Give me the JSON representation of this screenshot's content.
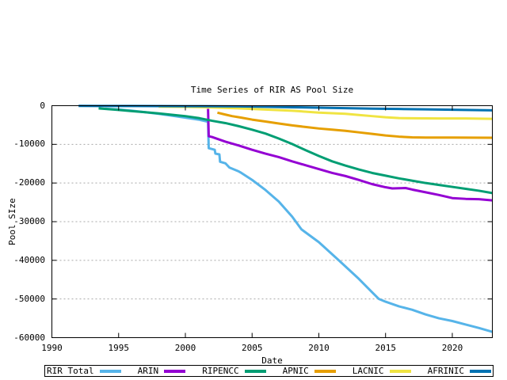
{
  "page": {
    "background": "#ffffff",
    "text_color": "#000000"
  },
  "chart_data": {
    "type": "line",
    "title": "Time Series of RIR AS Pool Size",
    "xlabel": "Date",
    "ylabel": "Pool SIze",
    "xlim": [
      1990,
      2023
    ],
    "ylim": [
      -60000,
      0
    ],
    "x_ticks": [
      1990,
      1995,
      2000,
      2005,
      2010,
      2015,
      2020
    ],
    "y_ticks": [
      0,
      -10000,
      -20000,
      -30000,
      -40000,
      -50000,
      -60000
    ],
    "grid": "horizontal-dashed",
    "grid_color": "#a8a8a8",
    "border_color": "#000000",
    "legend_position": "below-horizontal-boxed",
    "line_width": 3,
    "series": [
      {
        "name": "RIR Total",
        "color": "#56b4e9",
        "points": [
          [
            1994.0,
            -800
          ],
          [
            1995,
            -1000
          ],
          [
            1996,
            -1300
          ],
          [
            1997,
            -1700
          ],
          [
            1998,
            -2100
          ],
          [
            1999,
            -2600
          ],
          [
            2000,
            -3100
          ],
          [
            2001,
            -3600
          ],
          [
            2001.7,
            -4150
          ],
          [
            2001.75,
            -11000
          ],
          [
            2002.2,
            -11400
          ],
          [
            2002.25,
            -12400
          ],
          [
            2002.55,
            -12600
          ],
          [
            2002.6,
            -14500
          ],
          [
            2003,
            -14900
          ],
          [
            2003.3,
            -16000
          ],
          [
            2004,
            -17000
          ],
          [
            2004.2,
            -17400
          ],
          [
            2005,
            -19200
          ],
          [
            2006,
            -21800
          ],
          [
            2007,
            -24800
          ],
          [
            2008,
            -28700
          ],
          [
            2008.7,
            -32000
          ],
          [
            2010,
            -35300
          ],
          [
            2011.5,
            -40000
          ],
          [
            2013,
            -44800
          ],
          [
            2014,
            -48300
          ],
          [
            2014.5,
            -50000
          ],
          [
            2015,
            -50700
          ],
          [
            2016,
            -51900
          ],
          [
            2017,
            -52800
          ],
          [
            2018,
            -54000
          ],
          [
            2019,
            -55000
          ],
          [
            2020,
            -55700
          ],
          [
            2021,
            -56600
          ],
          [
            2022,
            -57500
          ],
          [
            2023,
            -58500
          ]
        ]
      },
      {
        "name": "ARIN",
        "color": "#9400d3",
        "points": [
          [
            2001.7,
            -800
          ],
          [
            2001.75,
            -7900
          ],
          [
            2002,
            -8100
          ],
          [
            2003,
            -9300
          ],
          [
            2004,
            -10300
          ],
          [
            2005,
            -11400
          ],
          [
            2006,
            -12400
          ],
          [
            2007,
            -13300
          ],
          [
            2008,
            -14400
          ],
          [
            2009,
            -15400
          ],
          [
            2010,
            -16400
          ],
          [
            2011,
            -17400
          ],
          [
            2012,
            -18200
          ],
          [
            2013,
            -19200
          ],
          [
            2014,
            -20300
          ],
          [
            2015,
            -21100
          ],
          [
            2015.5,
            -21400
          ],
          [
            2016.5,
            -21300
          ],
          [
            2017,
            -21700
          ],
          [
            2018,
            -22400
          ],
          [
            2019,
            -23100
          ],
          [
            2020,
            -23900
          ],
          [
            2021,
            -24100
          ],
          [
            2022,
            -24200
          ],
          [
            2023,
            -24500
          ]
        ]
      },
      {
        "name": "RIPENCC",
        "color": "#009e73",
        "points": [
          [
            1993.5,
            -700
          ],
          [
            1995,
            -1100
          ],
          [
            1996,
            -1400
          ],
          [
            1997,
            -1700
          ],
          [
            1998,
            -2000
          ],
          [
            1999,
            -2350
          ],
          [
            2000,
            -2700
          ],
          [
            2001,
            -3200
          ],
          [
            2002,
            -3900
          ],
          [
            2003,
            -4500
          ],
          [
            2004,
            -5300
          ],
          [
            2005,
            -6200
          ],
          [
            2006,
            -7200
          ],
          [
            2007,
            -8500
          ],
          [
            2008,
            -9900
          ],
          [
            2009,
            -11500
          ],
          [
            2010,
            -13000
          ],
          [
            2011,
            -14400
          ],
          [
            2012,
            -15500
          ],
          [
            2013,
            -16500
          ],
          [
            2014,
            -17400
          ],
          [
            2015,
            -18100
          ],
          [
            2016,
            -18800
          ],
          [
            2017,
            -19400
          ],
          [
            2018,
            -20000
          ],
          [
            2019,
            -20500
          ],
          [
            2020,
            -21000
          ],
          [
            2021,
            -21500
          ],
          [
            2022,
            -22000
          ],
          [
            2023,
            -22600
          ]
        ]
      },
      {
        "name": "APNIC",
        "color": "#e69f00",
        "points": [
          [
            2002.4,
            -1800
          ],
          [
            2003,
            -2300
          ],
          [
            2003.5,
            -2700
          ],
          [
            2004.2,
            -3100
          ],
          [
            2005,
            -3600
          ],
          [
            2006,
            -4100
          ],
          [
            2007,
            -4600
          ],
          [
            2008,
            -5100
          ],
          [
            2009,
            -5500
          ],
          [
            2010,
            -5900
          ],
          [
            2011,
            -6200
          ],
          [
            2012,
            -6500
          ],
          [
            2013,
            -6900
          ],
          [
            2014,
            -7300
          ],
          [
            2015,
            -7700
          ],
          [
            2016,
            -8000
          ],
          [
            2017,
            -8200
          ],
          [
            2018,
            -8250
          ],
          [
            2020,
            -8250
          ],
          [
            2023,
            -8300
          ]
        ]
      },
      {
        "name": "LACNIC",
        "color": "#f0e442",
        "points": [
          [
            1998,
            -250
          ],
          [
            2000,
            -300
          ],
          [
            2002,
            -450
          ],
          [
            2004,
            -700
          ],
          [
            2006,
            -1000
          ],
          [
            2008,
            -1300
          ],
          [
            2010,
            -1800
          ],
          [
            2012,
            -2100
          ],
          [
            2013,
            -2400
          ],
          [
            2014,
            -2700
          ],
          [
            2015,
            -3000
          ],
          [
            2016,
            -3200
          ],
          [
            2017,
            -3250
          ],
          [
            2019,
            -3300
          ],
          [
            2021,
            -3300
          ],
          [
            2023,
            -3400
          ]
        ]
      },
      {
        "name": "AFRINIC",
        "color": "#0072b2",
        "points": [
          [
            1992,
            -60
          ],
          [
            1996,
            -80
          ],
          [
            2000,
            -120
          ],
          [
            2004,
            -180
          ],
          [
            2006,
            -280
          ],
          [
            2008,
            -400
          ],
          [
            2010,
            -520
          ],
          [
            2012,
            -650
          ],
          [
            2014,
            -760
          ],
          [
            2016,
            -850
          ],
          [
            2018,
            -950
          ],
          [
            2020,
            -1050
          ],
          [
            2022,
            -1150
          ],
          [
            2023,
            -1200
          ]
        ]
      }
    ]
  }
}
